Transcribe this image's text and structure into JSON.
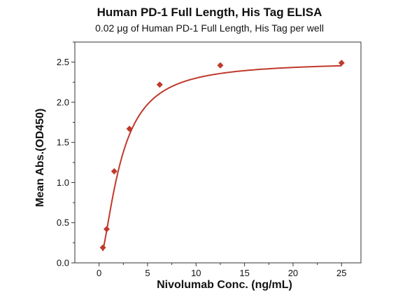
{
  "chart_data": {
    "type": "scatter",
    "title": "Human PD-1 Full Length, His Tag ELISA",
    "subtitle": "0.02 μg of Human PD-1 Full Length, His Tag per well",
    "xlabel": "Nivolumab Conc. (ng/mL)",
    "ylabel": "Mean Abs.(OD450)",
    "xlim": [
      -2.5,
      27.0
    ],
    "ylim": [
      0.0,
      2.75
    ],
    "x_ticks": [
      "0",
      "5",
      "10",
      "15",
      "20",
      "25"
    ],
    "y_ticks": [
      "0.0",
      "0.5",
      "1.0",
      "1.5",
      "2.0",
      "2.5"
    ],
    "grid": false,
    "series": [
      {
        "marker": "diamond",
        "color": "#c0392b",
        "points": [
          {
            "x": 0.39,
            "y": 0.19
          },
          {
            "x": 0.78,
            "y": 0.42
          },
          {
            "x": 1.56,
            "y": 1.14
          },
          {
            "x": 3.13,
            "y": 1.67
          },
          {
            "x": 6.25,
            "y": 2.22
          },
          {
            "x": 12.5,
            "y": 2.46
          },
          {
            "x": 25.0,
            "y": 2.49
          }
        ]
      }
    ],
    "fit_curve": {
      "color": "#c0392b",
      "model": "4PL",
      "bottom": 0.0,
      "top": 2.505,
      "ec50": 2.2,
      "hill": 1.6
    }
  }
}
